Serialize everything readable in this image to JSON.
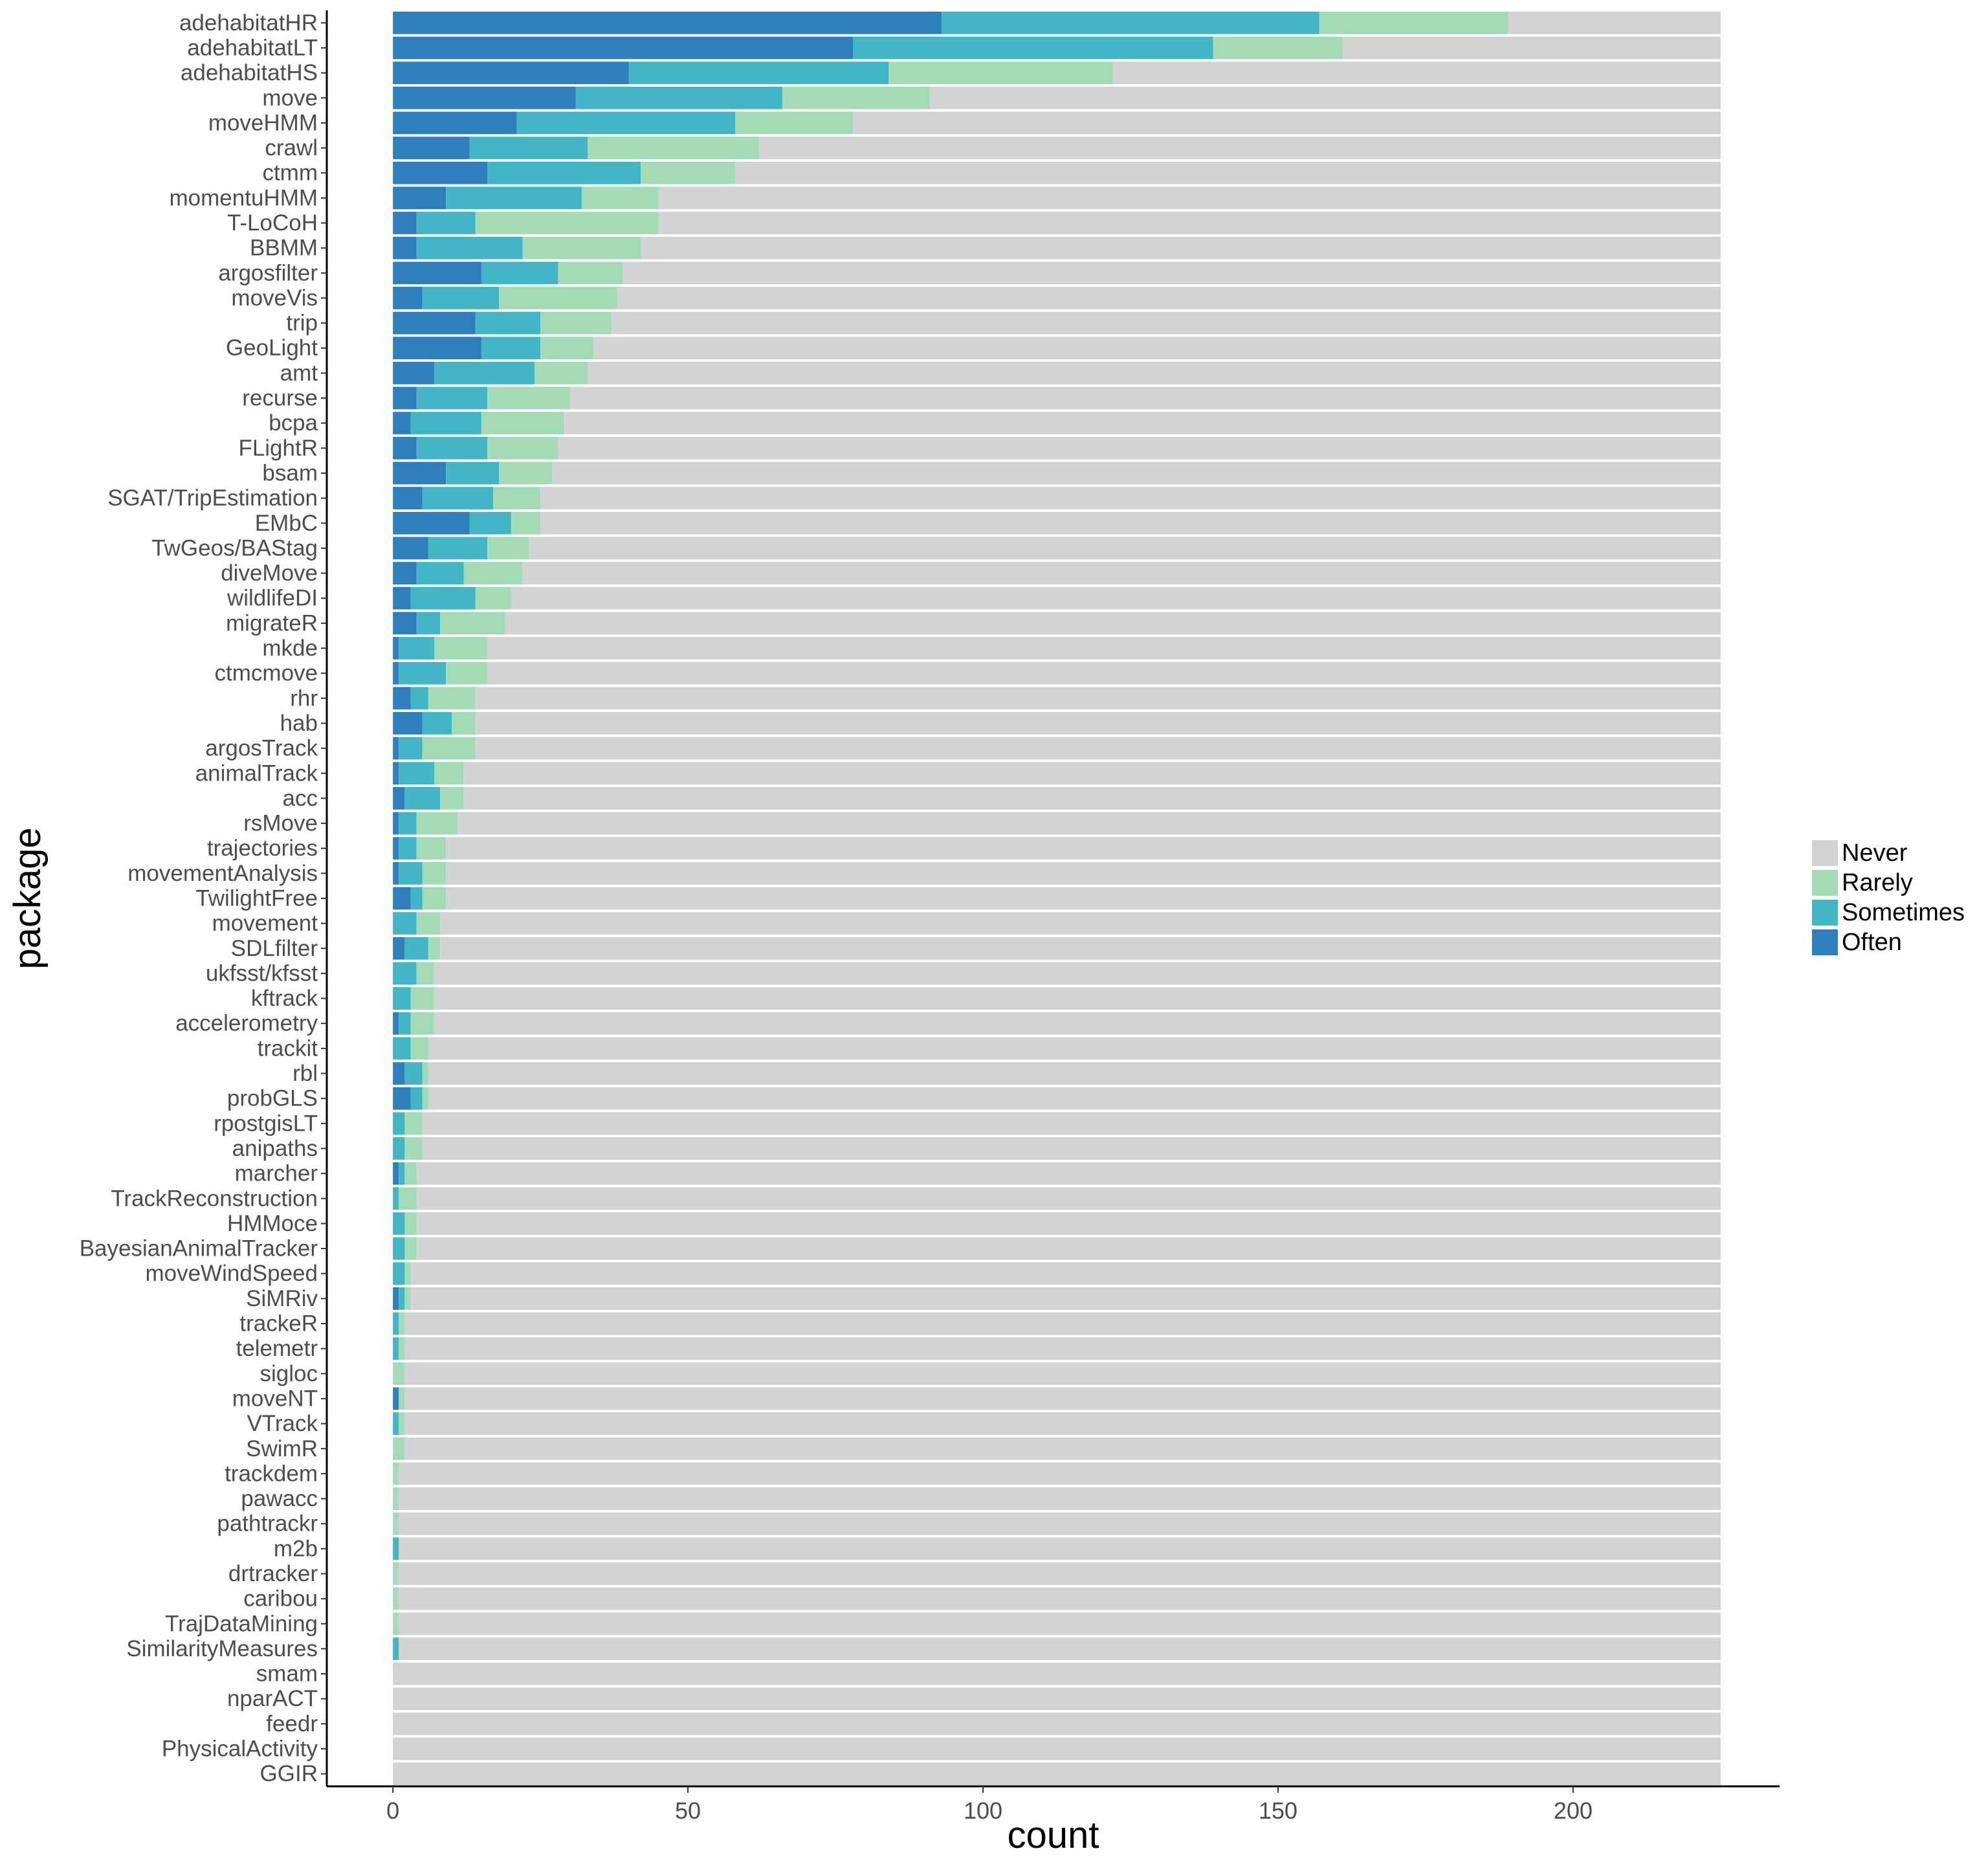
{
  "chart_data": {
    "type": "bar",
    "orientation": "horizontal",
    "stacked": true,
    "xlabel": "count",
    "ylabel": "package",
    "xlim": [
      -11.2,
      235
    ],
    "xticks": [
      0,
      50,
      100,
      150,
      200
    ],
    "grid": false,
    "legend_position": "right",
    "total_per_package": 225,
    "colors": {
      "Never": "#d3d3d3",
      "Rarely": "#a3dbb7",
      "Sometimes": "#43b6c6",
      "Often": "#2e80bd"
    },
    "legend": [
      "Never",
      "Rarely",
      "Sometimes",
      "Often"
    ],
    "stack_order": [
      "Often",
      "Sometimes",
      "Rarely",
      "Never"
    ],
    "categories": [
      "adehabitatHR",
      "adehabitatLT",
      "adehabitatHS",
      "move",
      "moveHMM",
      "crawl",
      "ctmm",
      "momentuHMM",
      "T-LoCoH",
      "BBMM",
      "argosfilter",
      "moveVis",
      "trip",
      "GeoLight",
      "amt",
      "recurse",
      "bcpa",
      "FLightR",
      "bsam",
      "SGAT/TripEstimation",
      "EMbC",
      "TwGeos/BAStag",
      "diveMove",
      "wildlifeDI",
      "migrateR",
      "mkde",
      "ctmcmove",
      "rhr",
      "hab",
      "argosTrack",
      "animalTrack",
      "acc",
      "rsMove",
      "trajectories",
      "movementAnalysis",
      "TwilightFree",
      "movement",
      "SDLfilter",
      "ukfsst/kfsst",
      "kftrack",
      "accelerometry",
      "trackit",
      "rbl",
      "probGLS",
      "rpostgisLT",
      "anipaths",
      "marcher",
      "TrackReconstruction",
      "HMMoce",
      "BayesianAnimalTracker",
      "moveWindSpeed",
      "SiMRiv",
      "trackeR",
      "telemetr",
      "sigloc",
      "moveNT",
      "VTrack",
      "SwimR",
      "trackdem",
      "pawacc",
      "pathtrackr",
      "m2b",
      "drtracker",
      "caribou",
      "TrajDataMining",
      "SimilarityMeasures",
      "smam",
      "nparACT",
      "feedr",
      "PhysicalActivity",
      "GGIR"
    ],
    "series": [
      {
        "name": "Often",
        "values": [
          93,
          78,
          40,
          31,
          21,
          13,
          16,
          9,
          4,
          4,
          15,
          5,
          14,
          15,
          7,
          4,
          3,
          4,
          9,
          5,
          13,
          6,
          4,
          3,
          4,
          1,
          1,
          3,
          5,
          1,
          1,
          2,
          1,
          1,
          1,
          3,
          0,
          2,
          0,
          0,
          1,
          0,
          2,
          3,
          0,
          0,
          1,
          0,
          0,
          0,
          0,
          1,
          0,
          0,
          0,
          1,
          0,
          0,
          0,
          0,
          0,
          0,
          0,
          0,
          0,
          0,
          0,
          0,
          0,
          0,
          0
        ]
      },
      {
        "name": "Sometimes",
        "values": [
          64,
          61,
          44,
          35,
          37,
          20,
          26,
          23,
          10,
          18,
          13,
          13,
          11,
          10,
          17,
          12,
          12,
          12,
          9,
          12,
          7,
          10,
          8,
          11,
          4,
          6,
          8,
          3,
          5,
          4,
          6,
          6,
          3,
          3,
          4,
          2,
          4,
          4,
          4,
          3,
          2,
          3,
          3,
          2,
          2,
          2,
          1,
          1,
          2,
          2,
          2,
          1,
          1,
          1,
          0,
          0,
          1,
          0,
          0,
          0,
          0,
          1,
          0,
          0,
          0,
          1,
          0,
          0,
          0,
          0,
          0
        ]
      },
      {
        "name": "Rarely",
        "values": [
          32,
          22,
          38,
          25,
          20,
          29,
          16,
          13,
          31,
          20,
          11,
          20,
          12,
          9,
          9,
          14,
          14,
          12,
          9,
          8,
          5,
          7,
          10,
          6,
          11,
          9,
          7,
          8,
          4,
          9,
          5,
          4,
          7,
          5,
          4,
          4,
          4,
          2,
          3,
          4,
          4,
          3,
          1,
          1,
          3,
          3,
          2,
          3,
          2,
          2,
          1,
          1,
          1,
          1,
          2,
          1,
          1,
          2,
          1,
          1,
          1,
          0,
          1,
          1,
          1,
          0,
          0,
          0,
          0,
          0,
          0
        ]
      }
    ]
  }
}
